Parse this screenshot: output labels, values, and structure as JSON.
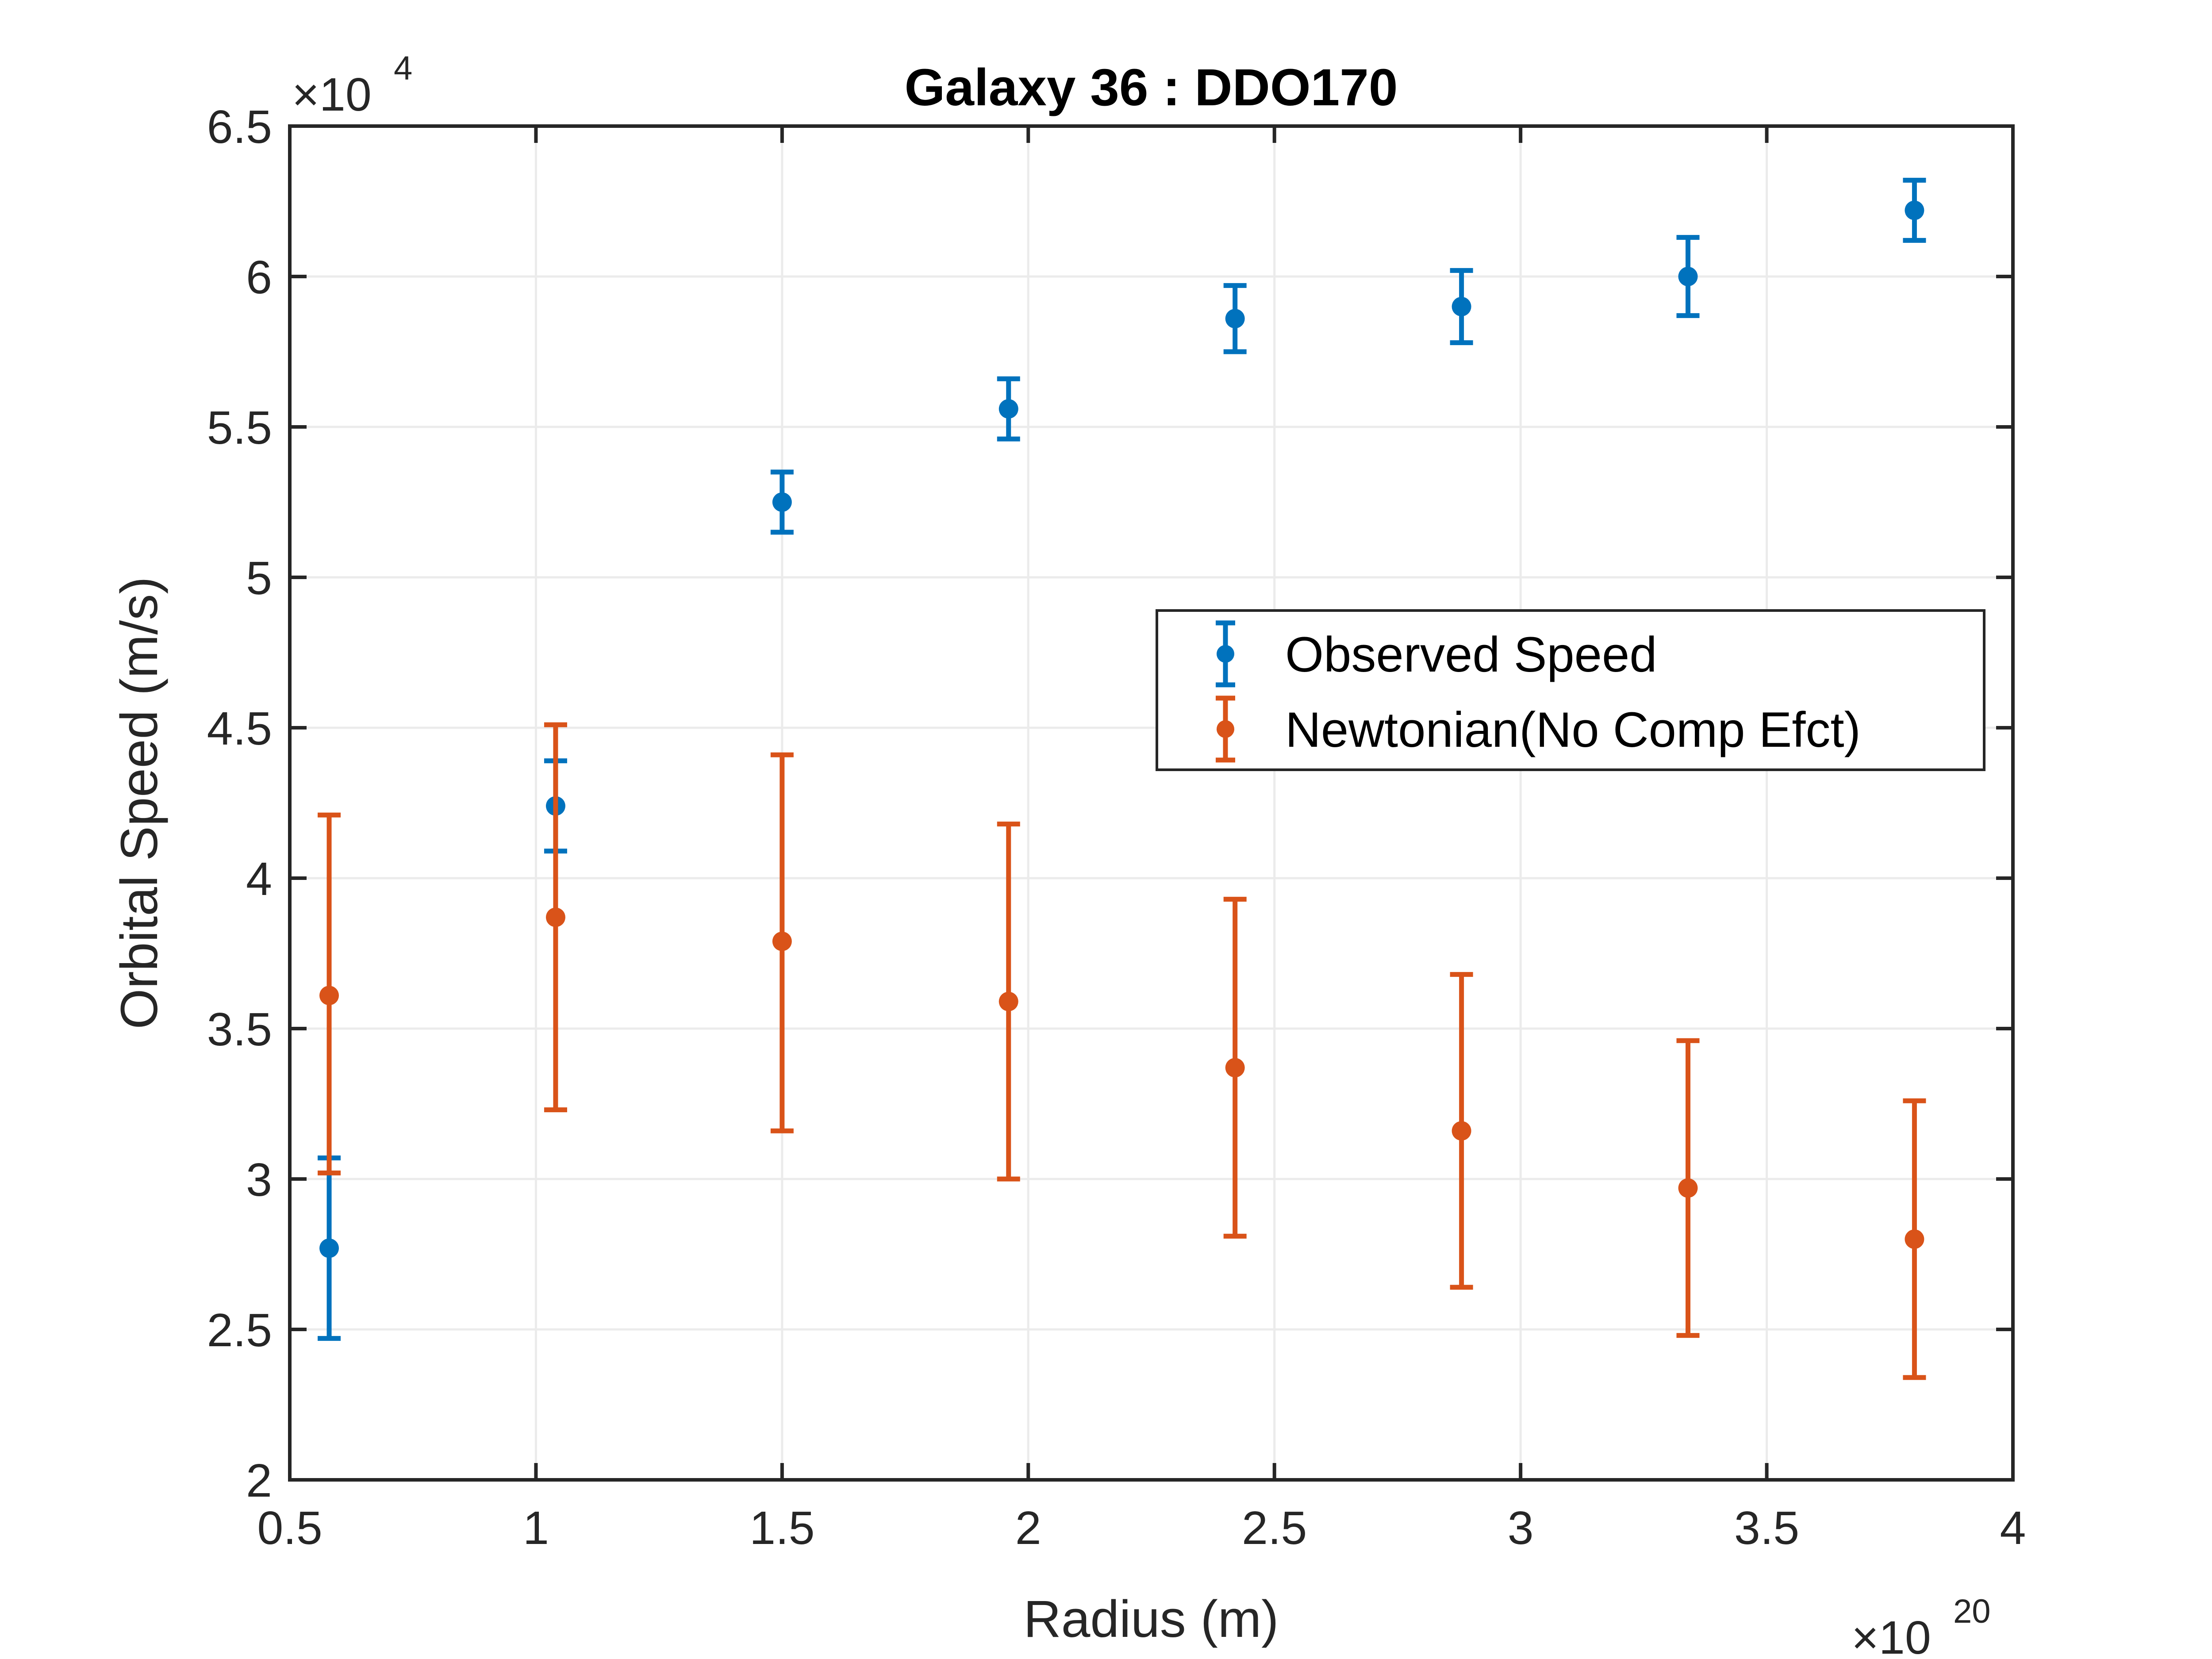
{
  "chart_data": {
    "type": "scatter",
    "title": "Galaxy 36 : DDO170",
    "xlabel": "Radius (m)",
    "ylabel": "Orbital Speed (m/s)",
    "x_exponent": {
      "base": "×10",
      "power": "20"
    },
    "y_exponent": {
      "base": "×10",
      "power": "4"
    },
    "xlim": [
      0.5,
      4
    ],
    "ylim": [
      2,
      6.5
    ],
    "xticks": [
      0.5,
      1,
      1.5,
      2,
      2.5,
      3,
      3.5,
      4
    ],
    "xtick_labels": [
      "0.5",
      "1",
      "1.5",
      "2",
      "2.5",
      "3",
      "3.5",
      "4"
    ],
    "yticks": [
      2,
      2.5,
      3,
      3.5,
      4,
      4.5,
      5,
      5.5,
      6,
      6.5
    ],
    "ytick_labels": [
      "2",
      "2.5",
      "3",
      "3.5",
      "4",
      "4.5",
      "5",
      "5.5",
      "6",
      "6.5"
    ],
    "grid": true,
    "legend_position": "right",
    "series": [
      {
        "name": "Observed Speed",
        "color": "#0072BD",
        "x": [
          0.58,
          1.04,
          1.5,
          1.96,
          2.42,
          2.88,
          3.34,
          3.8
        ],
        "y": [
          2.77,
          4.24,
          5.25,
          5.56,
          5.86,
          5.9,
          6.0,
          6.22
        ],
        "err_low": [
          2.47,
          4.09,
          5.15,
          5.46,
          5.75,
          5.78,
          5.87,
          6.12
        ],
        "err_high": [
          3.07,
          4.39,
          5.35,
          5.66,
          5.97,
          6.02,
          6.13,
          6.32
        ]
      },
      {
        "name": "Newtonian(No Comp Efct)",
        "color": "#D95319",
        "x": [
          0.58,
          1.04,
          1.5,
          1.96,
          2.42,
          2.88,
          3.34,
          3.8
        ],
        "y": [
          3.61,
          3.87,
          3.79,
          3.59,
          3.37,
          3.16,
          2.97,
          2.8
        ],
        "err_low": [
          3.02,
          3.23,
          3.16,
          3.0,
          2.81,
          2.64,
          2.48,
          2.34
        ],
        "err_high": [
          4.21,
          4.51,
          4.41,
          4.18,
          3.93,
          3.68,
          3.46,
          3.26
        ]
      }
    ]
  }
}
